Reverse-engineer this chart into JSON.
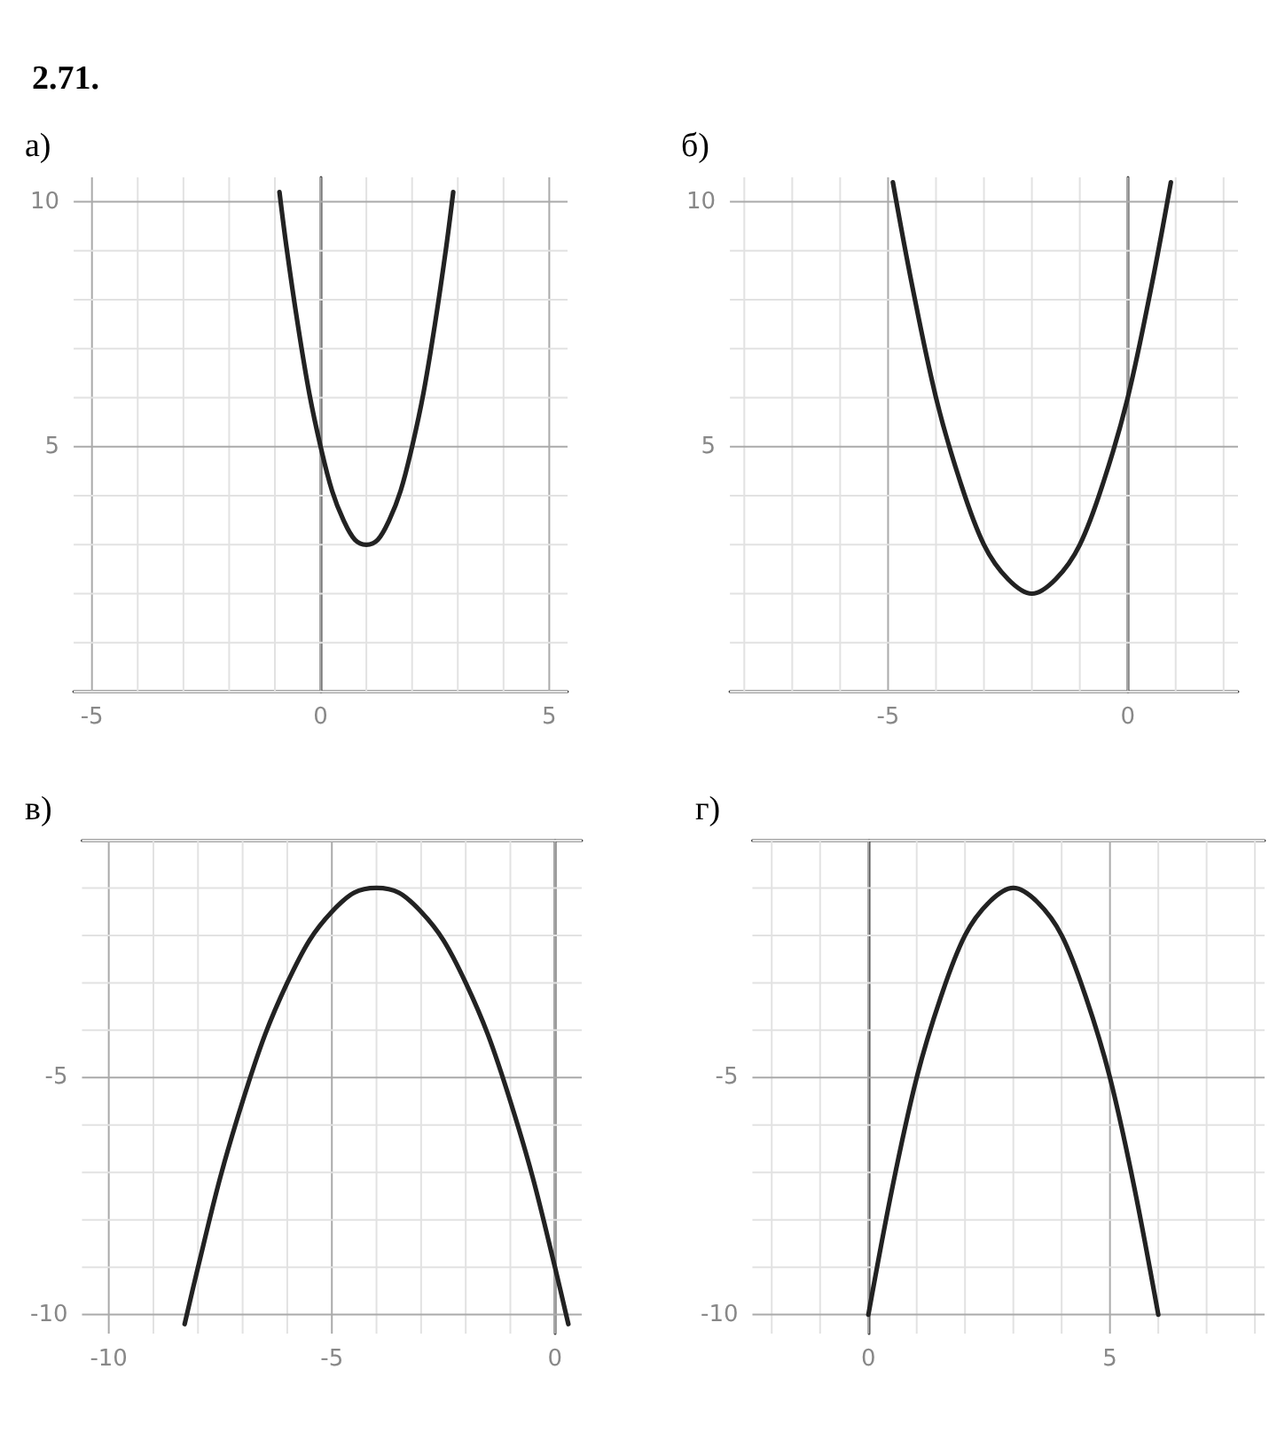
{
  "chart_data": [
    {
      "type": "line",
      "title": "а)",
      "annotations": [
        "2.71."
      ],
      "xlim": [
        -5.4,
        5.4
      ],
      "ylim": [
        0,
        10.5
      ],
      "xticks": [
        -5,
        0,
        5
      ],
      "yticks": [
        5,
        10
      ],
      "grid": true,
      "color": "#222222",
      "x": [
        -0.9,
        -0.75,
        -0.5,
        -0.25,
        0,
        0.25,
        0.5,
        0.75,
        1,
        1.25,
        1.5,
        1.75,
        2,
        2.25,
        2.5,
        2.75,
        2.9
      ],
      "values": [
        10.2,
        9.1,
        7.5,
        6.1,
        5,
        4.1,
        3.5,
        3.1,
        3,
        3.1,
        3.5,
        4.1,
        5,
        6.1,
        7.5,
        9.1,
        10.2
      ]
    },
    {
      "type": "line",
      "title": "б)",
      "xlim": [
        -8.3,
        2.3
      ],
      "ylim": [
        0,
        10.5
      ],
      "xticks": [
        -5,
        0
      ],
      "yticks": [
        5,
        10
      ],
      "grid": true,
      "color": "#222222",
      "x": [
        -4.9,
        -4.5,
        -4,
        -3.5,
        -3,
        -2.5,
        -2,
        -1.5,
        -1,
        -0.5,
        0,
        0.5,
        0.9
      ],
      "values": [
        10.4,
        8.3,
        6,
        4.3,
        3,
        2.3,
        2,
        2.3,
        3,
        4.3,
        6,
        8.3,
        10.4
      ]
    },
    {
      "type": "line",
      "title": "в)",
      "xlim": [
        -10.6,
        0.6
      ],
      "ylim": [
        -10.4,
        0
      ],
      "xticks": [
        -10,
        -5,
        0
      ],
      "yticks": [
        -10,
        -5
      ],
      "grid": true,
      "color": "#222222",
      "x": [
        -8.3,
        -8,
        -7.5,
        -7,
        -6.5,
        -6,
        -5.5,
        -5,
        -4.5,
        -4,
        -3.5,
        -3,
        -2.5,
        -2,
        -1.5,
        -1,
        -0.5,
        0,
        0.3
      ],
      "values": [
        -10.2,
        -9,
        -7.1,
        -5.5,
        -4.1,
        -3,
        -2.1,
        -1.5,
        -1.1,
        -1,
        -1.1,
        -1.5,
        -2.1,
        -3,
        -4.1,
        -5.5,
        -7.1,
        -9,
        -10.2
      ]
    },
    {
      "type": "line",
      "title": "г)",
      "xlim": [
        -2.4,
        8.2
      ],
      "ylim": [
        -10.4,
        0
      ],
      "xticks": [
        0,
        5
      ],
      "yticks": [
        -10,
        -5
      ],
      "grid": true,
      "color": "#222222",
      "x": [
        0,
        0.5,
        1,
        1.5,
        2,
        2.5,
        3,
        3.5,
        4,
        4.5,
        5,
        5.5,
        6
      ],
      "values": [
        -10,
        -7.3,
        -5,
        -3.3,
        -2,
        -1.3,
        -1,
        -1.3,
        -2,
        -3.3,
        -5,
        -7.3,
        -10
      ]
    }
  ]
}
